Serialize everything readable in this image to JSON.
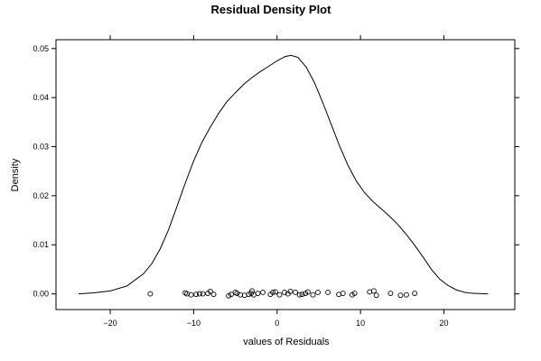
{
  "chart_data": {
    "type": "line",
    "title": "Residual Density Plot",
    "xlabel": "values of Residuals",
    "ylabel": "Density",
    "xlim": [
      -26.5,
      28.5
    ],
    "ylim": [
      -0.0032,
      0.0518
    ],
    "x_ticks": [
      -20,
      -10,
      0,
      10,
      20
    ],
    "x_tick_labels": [
      "−20",
      "−10",
      "0",
      "10",
      "20"
    ],
    "y_ticks": [
      0.0,
      0.01,
      0.02,
      0.03,
      0.04,
      0.05
    ],
    "y_tick_labels": [
      "0.00",
      "0.01",
      "0.02",
      "0.03",
      "0.04",
      "0.05"
    ],
    "grid": false,
    "line_color": "#000000",
    "point_color": "#000000",
    "series": [
      {
        "kind": "density-curve",
        "x": [
          -23.8,
          -22,
          -20,
          -18,
          -16,
          -15,
          -14,
          -13,
          -12,
          -11,
          -10,
          -9,
          -8,
          -7,
          -6,
          -5,
          -4,
          -3,
          -2,
          -1,
          0,
          1,
          1.7,
          2.5,
          3.5,
          4.5,
          5.5,
          6.5,
          7.5,
          8.5,
          9.5,
          10.5,
          11.5,
          12.5,
          13.5,
          14.5,
          15.5,
          16.5,
          17.5,
          18.5,
          19.5,
          20.5,
          21.5,
          22.5,
          23.5,
          25.3
        ],
        "y": [
          0.0,
          0.0002,
          0.0006,
          0.0016,
          0.0041,
          0.0062,
          0.0092,
          0.0131,
          0.0178,
          0.0226,
          0.0271,
          0.0309,
          0.034,
          0.0368,
          0.0392,
          0.041,
          0.0427,
          0.0441,
          0.0453,
          0.0464,
          0.0475,
          0.0484,
          0.0486,
          0.0482,
          0.0462,
          0.043,
          0.0389,
          0.0345,
          0.0301,
          0.0262,
          0.023,
          0.0206,
          0.0188,
          0.0173,
          0.0158,
          0.0141,
          0.0121,
          0.0099,
          0.0075,
          0.005,
          0.003,
          0.0017,
          0.0008,
          0.0003,
          0.0001,
          0.0
        ]
      },
      {
        "kind": "rug-points",
        "x": [
          -15.2,
          -11.0,
          -10.8,
          -10.3,
          -9.7,
          -9.3,
          -8.9,
          -8.3,
          -8.0,
          -7.6,
          -5.8,
          -5.5,
          -5.0,
          -4.8,
          -4.4,
          -3.9,
          -3.4,
          -3.1,
          -3.0,
          -2.8,
          -2.3,
          -1.7,
          -0.8,
          -0.5,
          -0.2,
          0.3,
          0.9,
          1.3,
          1.6,
          2.2,
          2.7,
          3.0,
          3.4,
          3.7,
          4.3,
          4.9,
          6.1,
          7.4,
          7.9,
          9.0,
          9.3,
          11.1,
          11.6,
          11.9,
          13.6,
          14.8,
          15.5,
          16.5
        ],
        "y": [
          0.0,
          0.0002,
          0.0,
          -0.0002,
          -0.0001,
          0.0,
          0.0,
          0.0001,
          0.0005,
          -0.0001,
          -0.0004,
          -0.0001,
          0.0003,
          0.0001,
          -0.0002,
          -0.0003,
          -0.0001,
          0.0001,
          0.0006,
          -0.0002,
          0.0001,
          0.0003,
          -0.0001,
          0.0003,
          0.0004,
          -0.0002,
          0.0003,
          0.0,
          0.0005,
          0.0003,
          -0.0002,
          -0.0001,
          0.0001,
          0.0004,
          -0.0002,
          0.0003,
          0.0003,
          -0.0001,
          0.0001,
          -0.0002,
          0.0001,
          0.0004,
          0.0006,
          -0.0003,
          0.0001,
          -0.0003,
          -0.0002,
          0.0001
        ]
      }
    ]
  }
}
